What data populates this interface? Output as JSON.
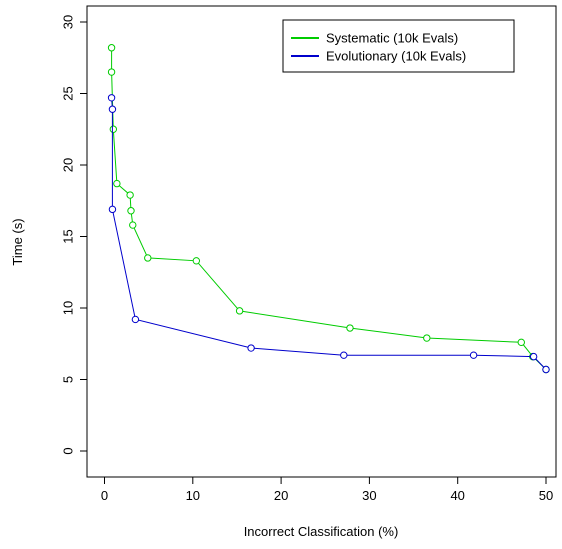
{
  "chart_data": {
    "type": "line",
    "title": "",
    "xlabel": "Incorrect Classification (%)",
    "ylabel": "Time (s)",
    "xlim": [
      0,
      50
    ],
    "ylim": [
      0,
      30
    ],
    "xticks": [
      0,
      10,
      20,
      30,
      40,
      50
    ],
    "yticks": [
      0,
      5,
      10,
      15,
      20,
      25,
      30
    ],
    "grid": false,
    "legend_position": "top-right",
    "series": [
      {
        "name": "Systematic (10k Evals)",
        "color": "#00cc00",
        "marker": "open-circle",
        "points": [
          {
            "x": 0.8,
            "y": 28.2
          },
          {
            "x": 0.8,
            "y": 26.5
          },
          {
            "x": 1.0,
            "y": 22.5
          },
          {
            "x": 1.4,
            "y": 18.7
          },
          {
            "x": 2.9,
            "y": 17.9
          },
          {
            "x": 3.0,
            "y": 16.8
          },
          {
            "x": 3.2,
            "y": 15.8
          },
          {
            "x": 4.9,
            "y": 13.5
          },
          {
            "x": 10.4,
            "y": 13.3
          },
          {
            "x": 15.3,
            "y": 9.8
          },
          {
            "x": 27.8,
            "y": 8.6
          },
          {
            "x": 36.5,
            "y": 7.9
          },
          {
            "x": 47.2,
            "y": 7.6
          },
          {
            "x": 48.5,
            "y": 6.6
          },
          {
            "x": 50.0,
            "y": 5.7
          }
        ]
      },
      {
        "name": "Evolutionary (10k Evals)",
        "color": "#0000cc",
        "marker": "open-circle",
        "points": [
          {
            "x": 0.8,
            "y": 24.7
          },
          {
            "x": 0.9,
            "y": 23.9
          },
          {
            "x": 0.9,
            "y": 16.9
          },
          {
            "x": 3.5,
            "y": 9.2
          },
          {
            "x": 16.6,
            "y": 7.2
          },
          {
            "x": 27.1,
            "y": 6.7
          },
          {
            "x": 41.8,
            "y": 6.7
          },
          {
            "x": 48.6,
            "y": 6.6
          },
          {
            "x": 50.0,
            "y": 5.7
          }
        ]
      }
    ]
  }
}
